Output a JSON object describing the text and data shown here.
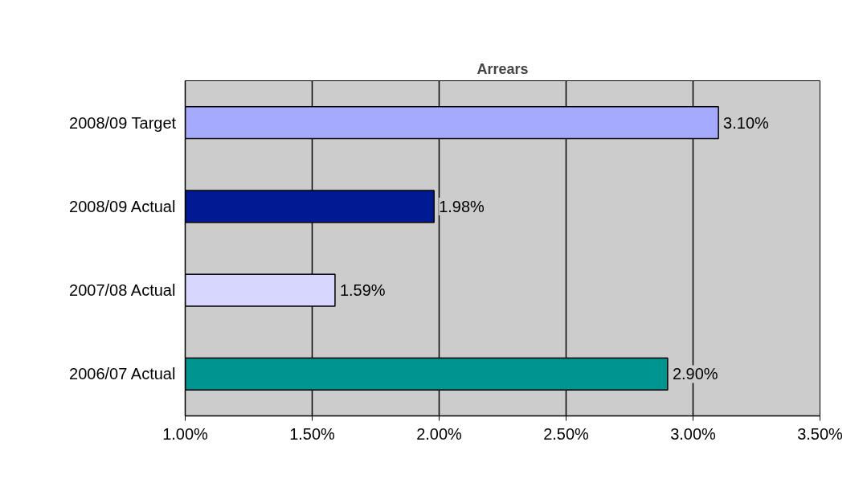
{
  "chart_data": {
    "type": "bar",
    "orientation": "horizontal",
    "title": "Arrears",
    "categories": [
      "2008/09 Target",
      "2008/09 Actual",
      "2007/08 Actual",
      "2006/07 Actual"
    ],
    "values": [
      3.1,
      1.98,
      1.59,
      2.9
    ],
    "colors": [
      "#a6aaff",
      "#001a94",
      "#d6d6ff",
      "#009490"
    ],
    "value_labels": [
      "3.10%",
      "1.98%",
      "1.59%",
      "2.90%"
    ],
    "xlim": [
      1.0,
      3.5
    ],
    "xticks": [
      {
        "value": 1.0,
        "label": "1.00%"
      },
      {
        "value": 1.5,
        "label": "1.50%"
      },
      {
        "value": 2.0,
        "label": "2.00%"
      },
      {
        "value": 2.5,
        "label": "2.50%"
      },
      {
        "value": 3.0,
        "label": "3.00%"
      },
      {
        "value": 3.5,
        "label": "3.50%"
      }
    ],
    "grid": "x"
  }
}
